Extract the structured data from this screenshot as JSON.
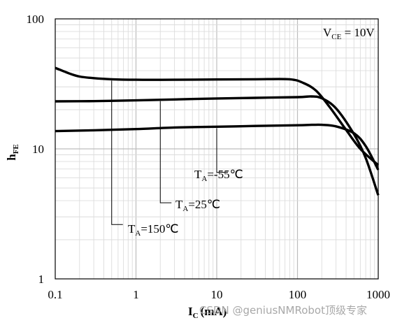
{
  "chart_data": {
    "type": "line",
    "xscale": "log",
    "yscale": "log",
    "xlim": [
      0.1,
      1000
    ],
    "ylim": [
      1,
      100
    ],
    "x_ticks": [
      "0.1",
      "1",
      "10",
      "100",
      "1000"
    ],
    "y_ticks": [
      "1",
      "10",
      "100"
    ],
    "xlabel": {
      "main": "I",
      "sub": "C",
      "unit": "(mA)"
    },
    "ylabel": {
      "main": "h",
      "sub": "FE"
    },
    "grid": true,
    "condition": {
      "main": "V",
      "sub": "CE",
      "rest": " = 10V"
    },
    "series": [
      {
        "name": {
          "main": "T",
          "sub": "A",
          "rest": "=150℃"
        },
        "x": [
          0.1,
          0.15,
          0.2,
          0.3,
          0.5,
          1,
          3,
          10,
          30,
          80,
          120,
          170,
          250,
          400,
          600,
          1000
        ],
        "y": [
          42,
          38,
          36,
          35,
          34.3,
          34,
          34,
          34.2,
          34.3,
          34.3,
          32,
          28,
          21,
          14,
          10,
          7.5
        ]
      },
      {
        "name": {
          "main": "T",
          "sub": "A",
          "rest": "=25℃"
        },
        "x": [
          0.1,
          0.3,
          1,
          3,
          10,
          30,
          100,
          150,
          200,
          300,
          500,
          700,
          1000
        ],
        "y": [
          23.2,
          23.3,
          23.6,
          24,
          24.4,
          24.7,
          25,
          25.3,
          24.5,
          20.5,
          13,
          8.5,
          4.4
        ]
      },
      {
        "name": {
          "main": "T",
          "sub": "A",
          "rest": "=-55℃"
        },
        "x": [
          0.1,
          0.3,
          1,
          3,
          10,
          30,
          100,
          150,
          200,
          300,
          500,
          700,
          1000
        ],
        "y": [
          13.7,
          13.9,
          14.2,
          14.6,
          14.8,
          15,
          15.2,
          15.3,
          15.3,
          14.9,
          13.2,
          10.5,
          6.9
        ]
      }
    ],
    "annotations": [
      {
        "series": 0,
        "x": 0.5,
        "label_y": 2.62
      },
      {
        "series": 1,
        "x": 2,
        "label_y": 3.85
      },
      {
        "series": 2,
        "x": 10,
        "label_y": 6.6
      }
    ]
  },
  "watermark": "CSDN @geniusNMRobot顶级专家"
}
